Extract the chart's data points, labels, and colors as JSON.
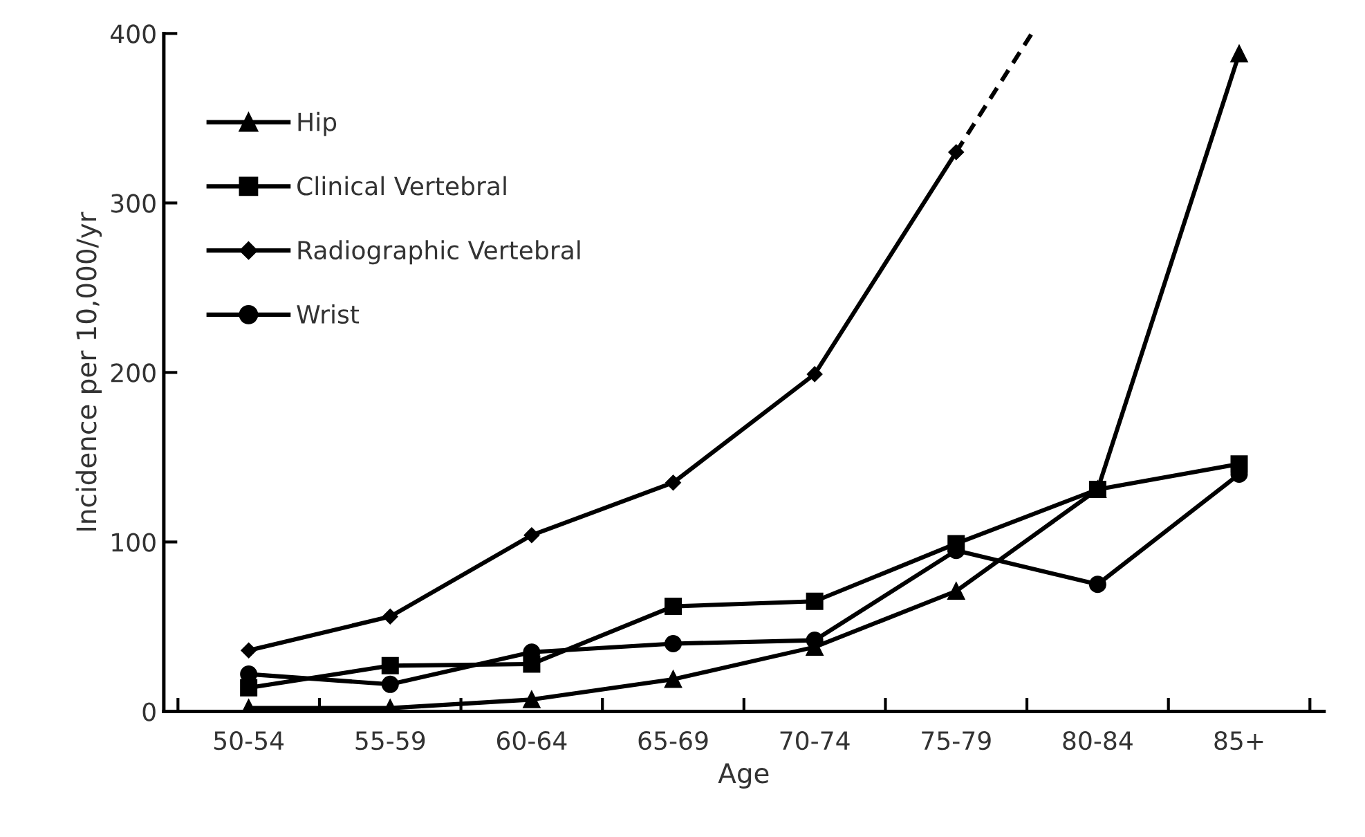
{
  "chart_data": {
    "type": "line",
    "xlabel": "Age",
    "ylabel": "Incidence per 10,000/yr",
    "categories": [
      "50-54",
      "55-59",
      "60-64",
      "65-69",
      "70-74",
      "75-79",
      "80-84",
      "85+"
    ],
    "ylim": [
      0,
      400
    ],
    "yticks": [
      0,
      100,
      200,
      300,
      400
    ],
    "grid": false,
    "legend": "top left",
    "series": [
      {
        "name": "Hip",
        "color": "#000000",
        "marker": "triangle",
        "values": [
          2,
          2,
          7,
          19,
          38,
          71,
          131,
          388
        ]
      },
      {
        "name": "Clinical Vertebral",
        "color": "#000000",
        "marker": "square",
        "values": [
          14,
          27,
          28,
          62,
          65,
          99,
          131,
          146
        ]
      },
      {
        "name": "Radiographic Vertebral",
        "color": "#000000",
        "marker": "diamond",
        "values": [
          36,
          56,
          104,
          135,
          199,
          330,
          null,
          null
        ]
      },
      {
        "name": "Wrist",
        "color": "#000000",
        "marker": "circle",
        "values": [
          22,
          16,
          35,
          40,
          42,
          95,
          75,
          140
        ]
      }
    ]
  }
}
